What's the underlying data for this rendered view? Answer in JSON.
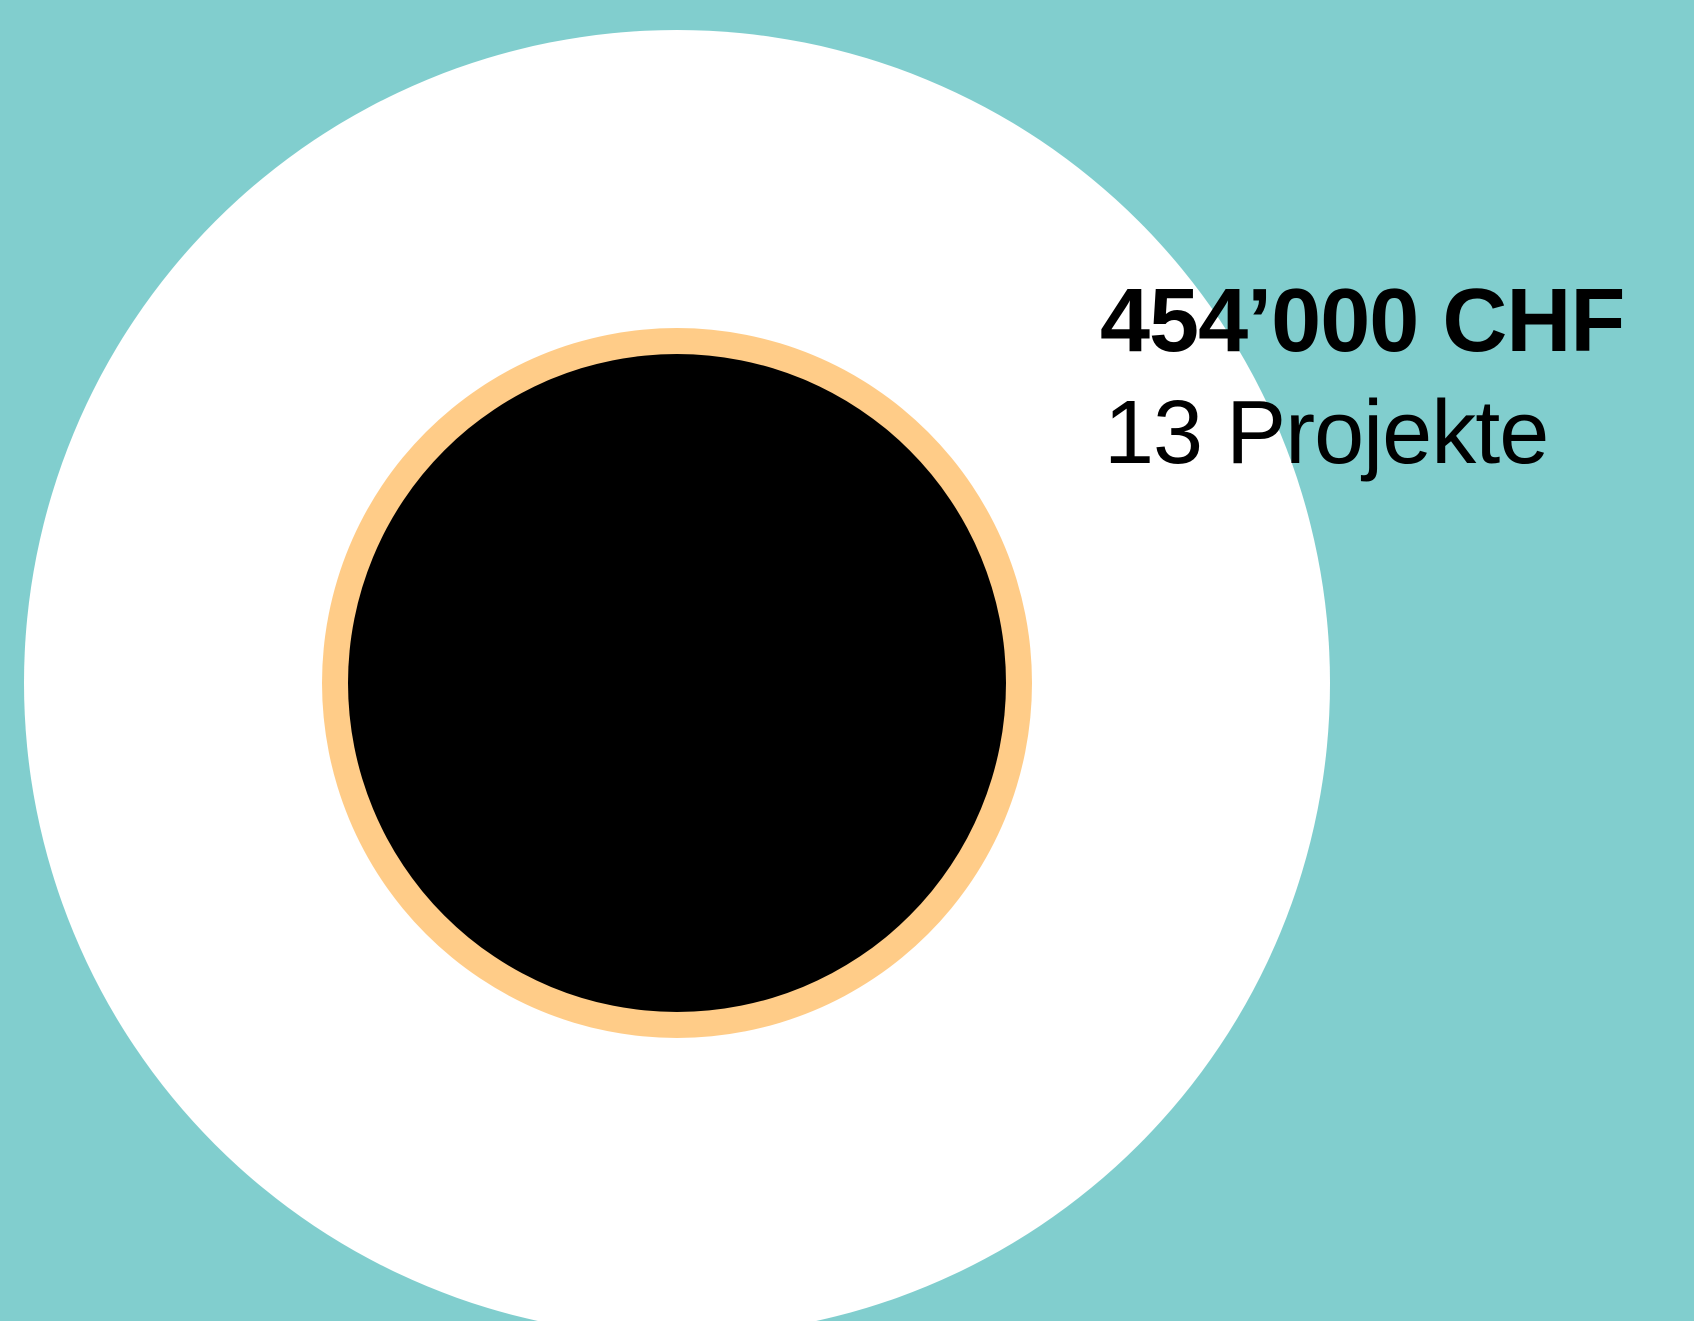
{
  "colors": {
    "background": "#81CECE",
    "outer_circle": "#FFFFFF",
    "ring": "#FFCC88",
    "inner_circle": "#000000",
    "text": "#000000"
  },
  "label": {
    "amount": "454’000 CHF",
    "projects": "13 Projekte"
  },
  "chart_data": {
    "type": "bubble",
    "shapes": [
      {
        "role": "outer",
        "color": "#FFFFFF"
      },
      {
        "role": "ring",
        "color": "#FFCC88"
      },
      {
        "role": "inner",
        "color": "#000000"
      }
    ],
    "annotations": [
      "454’000 CHF",
      "13 Projekte"
    ]
  }
}
